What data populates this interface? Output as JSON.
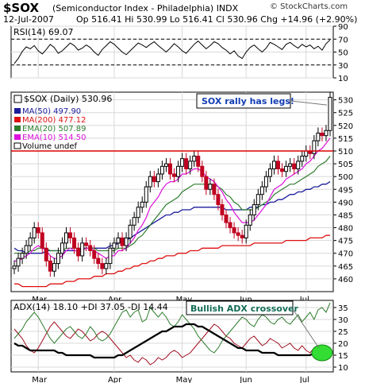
{
  "header": {
    "symbol": "$SOX",
    "name": "(Semiconductor Index - Philadelphia)",
    "exchange": "INDX",
    "copyright": "© StockCharts.com",
    "date": "12-Jul-2007",
    "ohlc": "Op 516.41  Hi 530.99  Lo 516.41  Cl 530.96  Chg +14.96 (+2.90%)"
  },
  "colors": {
    "price_up": "#000000",
    "price_down": "#c00020",
    "ma50": "#1c1c9c",
    "ma200": "#dd1111",
    "ema20": "#2e7d2e",
    "ema10": "#dd11dd",
    "rsi": "#000000",
    "adx": "#000000",
    "plus_di": "#2e7d2e",
    "minus_di": "#a01020",
    "resistance": "#dd0000",
    "highlight": "#33dd33"
  },
  "chart_data": [
    {
      "type": "line",
      "panel": "rsi",
      "label": "RSI(14) 69.07",
      "y_ticks": [
        90,
        70,
        50,
        30,
        10
      ],
      "guide_levels": [
        70,
        30
      ],
      "ylim": [
        10,
        90
      ],
      "series": [
        {
          "name": "RSI(14)",
          "values": [
            32,
            40,
            51,
            58,
            55,
            60,
            52,
            47,
            54,
            62,
            57,
            48,
            52,
            58,
            64,
            60,
            53,
            56,
            61,
            57,
            50,
            45,
            54,
            60,
            66,
            62,
            56,
            50,
            46,
            52,
            58,
            64,
            61,
            57,
            62,
            66,
            60,
            55,
            50,
            56,
            63,
            58,
            52,
            48,
            55,
            62,
            67,
            61,
            55,
            60,
            66,
            63,
            57,
            53,
            47,
            52,
            44,
            40,
            50,
            57,
            61,
            55,
            50,
            56,
            65,
            62,
            58,
            54,
            62,
            65,
            60,
            56,
            62,
            58,
            61,
            55,
            59,
            53,
            63,
            69
          ]
        }
      ]
    },
    {
      "type": "line",
      "panel": "price",
      "title": "$SOX (Daily) 530.96",
      "annotation": "SOX rally has legs!",
      "legend": [
        {
          "label": "MA(50) 497.90",
          "color": "#1c1c9c"
        },
        {
          "label": "MA(200) 477.12",
          "color": "#dd1111"
        },
        {
          "label": "EMA(20) 507.89",
          "color": "#2e7d2e"
        },
        {
          "label": "EMA(10) 514.50",
          "color": "#dd11dd"
        },
        {
          "label": "Volume undef",
          "color": "#ffffff"
        }
      ],
      "y_ticks": [
        530,
        525,
        520,
        515,
        510,
        505,
        500,
        495,
        490,
        485,
        480,
        475,
        470,
        465,
        460
      ],
      "ylim": [
        455,
        533
      ],
      "resistance": 510,
      "x_ticks": [
        "Mar",
        "Apr",
        "May",
        "Jun",
        "Jul"
      ],
      "series": [
        {
          "name": "$SOX",
          "values": [
            465,
            468,
            470,
            473,
            476,
            480,
            478,
            472,
            467,
            463,
            466,
            470,
            474,
            478,
            476,
            472,
            469,
            474,
            473,
            471,
            468,
            466,
            464,
            466,
            472,
            474,
            476,
            473,
            476,
            481,
            484,
            488,
            490,
            496,
            500,
            498,
            501,
            504,
            505,
            501,
            500,
            504,
            507,
            503,
            506,
            508,
            504,
            500,
            495,
            497,
            493,
            489,
            485,
            482,
            480,
            478,
            477,
            476,
            481,
            485,
            489,
            493,
            496,
            500,
            503,
            506,
            503,
            502,
            504,
            505,
            503,
            506,
            508,
            510,
            509,
            514,
            517,
            516,
            518,
            531
          ]
        },
        {
          "name": "MA(50)",
          "values": [
            472,
            471,
            471,
            470,
            470,
            470,
            470,
            470,
            471,
            471,
            471,
            471,
            471,
            471,
            471,
            471,
            471,
            472,
            472,
            472,
            472,
            472,
            472,
            472,
            473,
            473,
            474,
            474,
            475,
            476,
            477,
            478,
            479,
            480,
            481,
            482,
            483,
            484,
            485,
            485,
            486,
            486,
            487,
            487,
            487,
            488,
            488,
            488,
            488,
            488,
            488,
            488,
            488,
            487,
            487,
            487,
            487,
            487,
            487,
            488,
            488,
            488,
            489,
            489,
            490,
            490,
            491,
            491,
            492,
            493,
            493,
            494,
            494,
            495,
            495,
            496,
            496,
            497,
            497,
            498
          ]
        },
        {
          "name": "MA(200)",
          "values": [
            458,
            458,
            457,
            457,
            457,
            457,
            457,
            457,
            457,
            458,
            458,
            458,
            458,
            459,
            459,
            459,
            460,
            460,
            460,
            460,
            461,
            461,
            461,
            462,
            462,
            462,
            463,
            463,
            464,
            464,
            465,
            465,
            466,
            466,
            467,
            467,
            468,
            468,
            469,
            469,
            469,
            470,
            470,
            470,
            471,
            471,
            471,
            472,
            472,
            472,
            472,
            472,
            473,
            473,
            473,
            473,
            473,
            473,
            473,
            473,
            474,
            474,
            474,
            474,
            474,
            474,
            474,
            474,
            475,
            475,
            475,
            475,
            475,
            475,
            476,
            476,
            476,
            476,
            477,
            477
          ]
        },
        {
          "name": "EMA(20)",
          "values": [
            470,
            470,
            470,
            470,
            471,
            471,
            472,
            472,
            472,
            471,
            471,
            471,
            471,
            472,
            472,
            472,
            472,
            472,
            472,
            472,
            472,
            471,
            471,
            471,
            471,
            471,
            472,
            472,
            472,
            473,
            474,
            476,
            477,
            479,
            481,
            483,
            485,
            487,
            489,
            490,
            491,
            492,
            494,
            495,
            496,
            497,
            497,
            497,
            497,
            497,
            497,
            496,
            495,
            493,
            492,
            490,
            489,
            487,
            487,
            487,
            487,
            488,
            489,
            490,
            491,
            493,
            494,
            495,
            496,
            497,
            497,
            498,
            499,
            500,
            501,
            502,
            504,
            505,
            506,
            508
          ]
        },
        {
          "name": "EMA(10)",
          "values": [
            467,
            467,
            468,
            469,
            470,
            472,
            473,
            472,
            471,
            469,
            468,
            468,
            469,
            471,
            472,
            471,
            471,
            471,
            472,
            472,
            471,
            470,
            469,
            468,
            469,
            469,
            471,
            471,
            472,
            474,
            476,
            479,
            481,
            484,
            488,
            490,
            492,
            495,
            497,
            498,
            498,
            499,
            501,
            501,
            502,
            503,
            503,
            502,
            500,
            499,
            498,
            496,
            494,
            491,
            489,
            486,
            484,
            482,
            482,
            482,
            483,
            485,
            487,
            489,
            492,
            495,
            496,
            497,
            499,
            500,
            501,
            502,
            503,
            505,
            506,
            508,
            510,
            511,
            513,
            515
          ]
        }
      ]
    },
    {
      "type": "line",
      "panel": "adx",
      "label": "ADX(14) 18.10  +DI 37.05  -DI 14.44",
      "annotation": "Bullish ADX crossover",
      "y_ticks": [
        35,
        30,
        25,
        20,
        15,
        10
      ],
      "ylim": [
        8,
        38
      ],
      "series": [
        {
          "name": "ADX(14)",
          "values": [
            20,
            19,
            19,
            18,
            17,
            17,
            17,
            17,
            17,
            17,
            17,
            16,
            16,
            15,
            15,
            15,
            15,
            15,
            15,
            15,
            14,
            14,
            14,
            14,
            14,
            14,
            15,
            15,
            16,
            17,
            18,
            19,
            20,
            21,
            22,
            23,
            24,
            25,
            25,
            26,
            27,
            27,
            27,
            28,
            28,
            28,
            27,
            27,
            26,
            25,
            24,
            23,
            22,
            21,
            20,
            19,
            18,
            18,
            17,
            17,
            17,
            17,
            16,
            16,
            16,
            16,
            15,
            15,
            15,
            15,
            15,
            15,
            15,
            15,
            15,
            16,
            16,
            17,
            17,
            18
          ]
        },
        {
          "name": "+DI",
          "values": [
            22,
            24,
            26,
            29,
            31,
            33,
            31,
            28,
            25,
            22,
            20,
            22,
            24,
            26,
            27,
            25,
            23,
            22,
            24,
            27,
            25,
            22,
            21,
            22,
            24,
            27,
            30,
            33,
            34,
            31,
            33,
            34,
            29,
            30,
            35,
            33,
            31,
            33,
            31,
            28,
            27,
            29,
            32,
            30,
            28,
            26,
            23,
            21,
            19,
            17,
            16,
            18,
            21,
            23,
            25,
            27,
            29,
            31,
            30,
            28,
            27,
            30,
            32,
            31,
            29,
            28,
            30,
            31,
            29,
            28,
            30,
            32,
            29,
            31,
            33,
            30,
            34,
            35,
            33,
            37
          ]
        },
        {
          "name": "-DI",
          "values": [
            26,
            24,
            22,
            19,
            17,
            16,
            18,
            21,
            24,
            27,
            29,
            27,
            25,
            23,
            22,
            24,
            26,
            25,
            23,
            21,
            22,
            24,
            25,
            24,
            22,
            20,
            18,
            16,
            14,
            15,
            13,
            12,
            14,
            13,
            11,
            12,
            14,
            13,
            14,
            16,
            17,
            16,
            14,
            15,
            16,
            18,
            20,
            22,
            24,
            26,
            28,
            27,
            25,
            23,
            22,
            20,
            19,
            18,
            20,
            22,
            23,
            21,
            19,
            20,
            22,
            21,
            20,
            18,
            19,
            20,
            18,
            17,
            19,
            17,
            16,
            18,
            15,
            14,
            16,
            14
          ]
        }
      ]
    }
  ]
}
